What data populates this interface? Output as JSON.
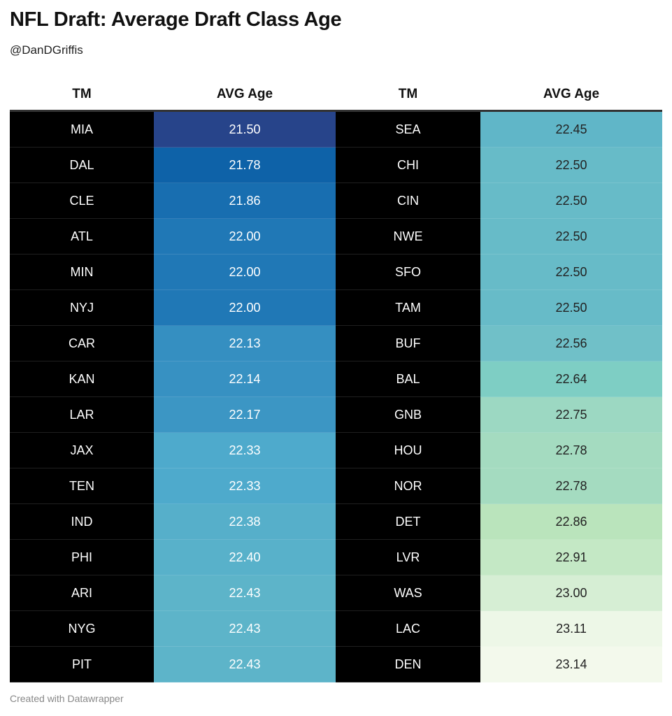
{
  "title": "NFL Draft: Average Draft Class Age",
  "subtitle": "@DanDGriffis",
  "footer": "Created with Datawrapper",
  "chart_data": {
    "type": "table",
    "columns": [
      "TM",
      "AVG Age",
      "TM",
      "AVG Age"
    ],
    "rows": [
      {
        "left_team": "MIA",
        "left_age": "21.50",
        "right_team": "SEA",
        "right_age": "22.45"
      },
      {
        "left_team": "DAL",
        "left_age": "21.78",
        "right_team": "CHI",
        "right_age": "22.50"
      },
      {
        "left_team": "CLE",
        "left_age": "21.86",
        "right_team": "CIN",
        "right_age": "22.50"
      },
      {
        "left_team": "ATL",
        "left_age": "22.00",
        "right_team": "NWE",
        "right_age": "22.50"
      },
      {
        "left_team": "MIN",
        "left_age": "22.00",
        "right_team": "SFO",
        "right_age": "22.50"
      },
      {
        "left_team": "NYJ",
        "left_age": "22.00",
        "right_team": "TAM",
        "right_age": "22.50"
      },
      {
        "left_team": "CAR",
        "left_age": "22.13",
        "right_team": "BUF",
        "right_age": "22.56"
      },
      {
        "left_team": "KAN",
        "left_age": "22.14",
        "right_team": "BAL",
        "right_age": "22.64"
      },
      {
        "left_team": "LAR",
        "left_age": "22.17",
        "right_team": "GNB",
        "right_age": "22.75"
      },
      {
        "left_team": "JAX",
        "left_age": "22.33",
        "right_team": "HOU",
        "right_age": "22.78"
      },
      {
        "left_team": "TEN",
        "left_age": "22.33",
        "right_team": "NOR",
        "right_age": "22.78"
      },
      {
        "left_team": "IND",
        "left_age": "22.38",
        "right_team": "DET",
        "right_age": "22.86"
      },
      {
        "left_team": "PHI",
        "left_age": "22.40",
        "right_team": "LVR",
        "right_age": "22.91"
      },
      {
        "left_team": "ARI",
        "left_age": "22.43",
        "right_team": "WAS",
        "right_age": "23.00"
      },
      {
        "left_team": "NYG",
        "left_age": "22.43",
        "right_team": "LAC",
        "right_age": "23.11"
      },
      {
        "left_team": "PIT",
        "left_age": "22.43",
        "right_team": "DEN",
        "right_age": "23.14"
      }
    ],
    "color_scale": {
      "min_value": 21.5,
      "max_value": 23.14,
      "min_color": "#27448a",
      "max_color": "#f3f9ec"
    }
  }
}
